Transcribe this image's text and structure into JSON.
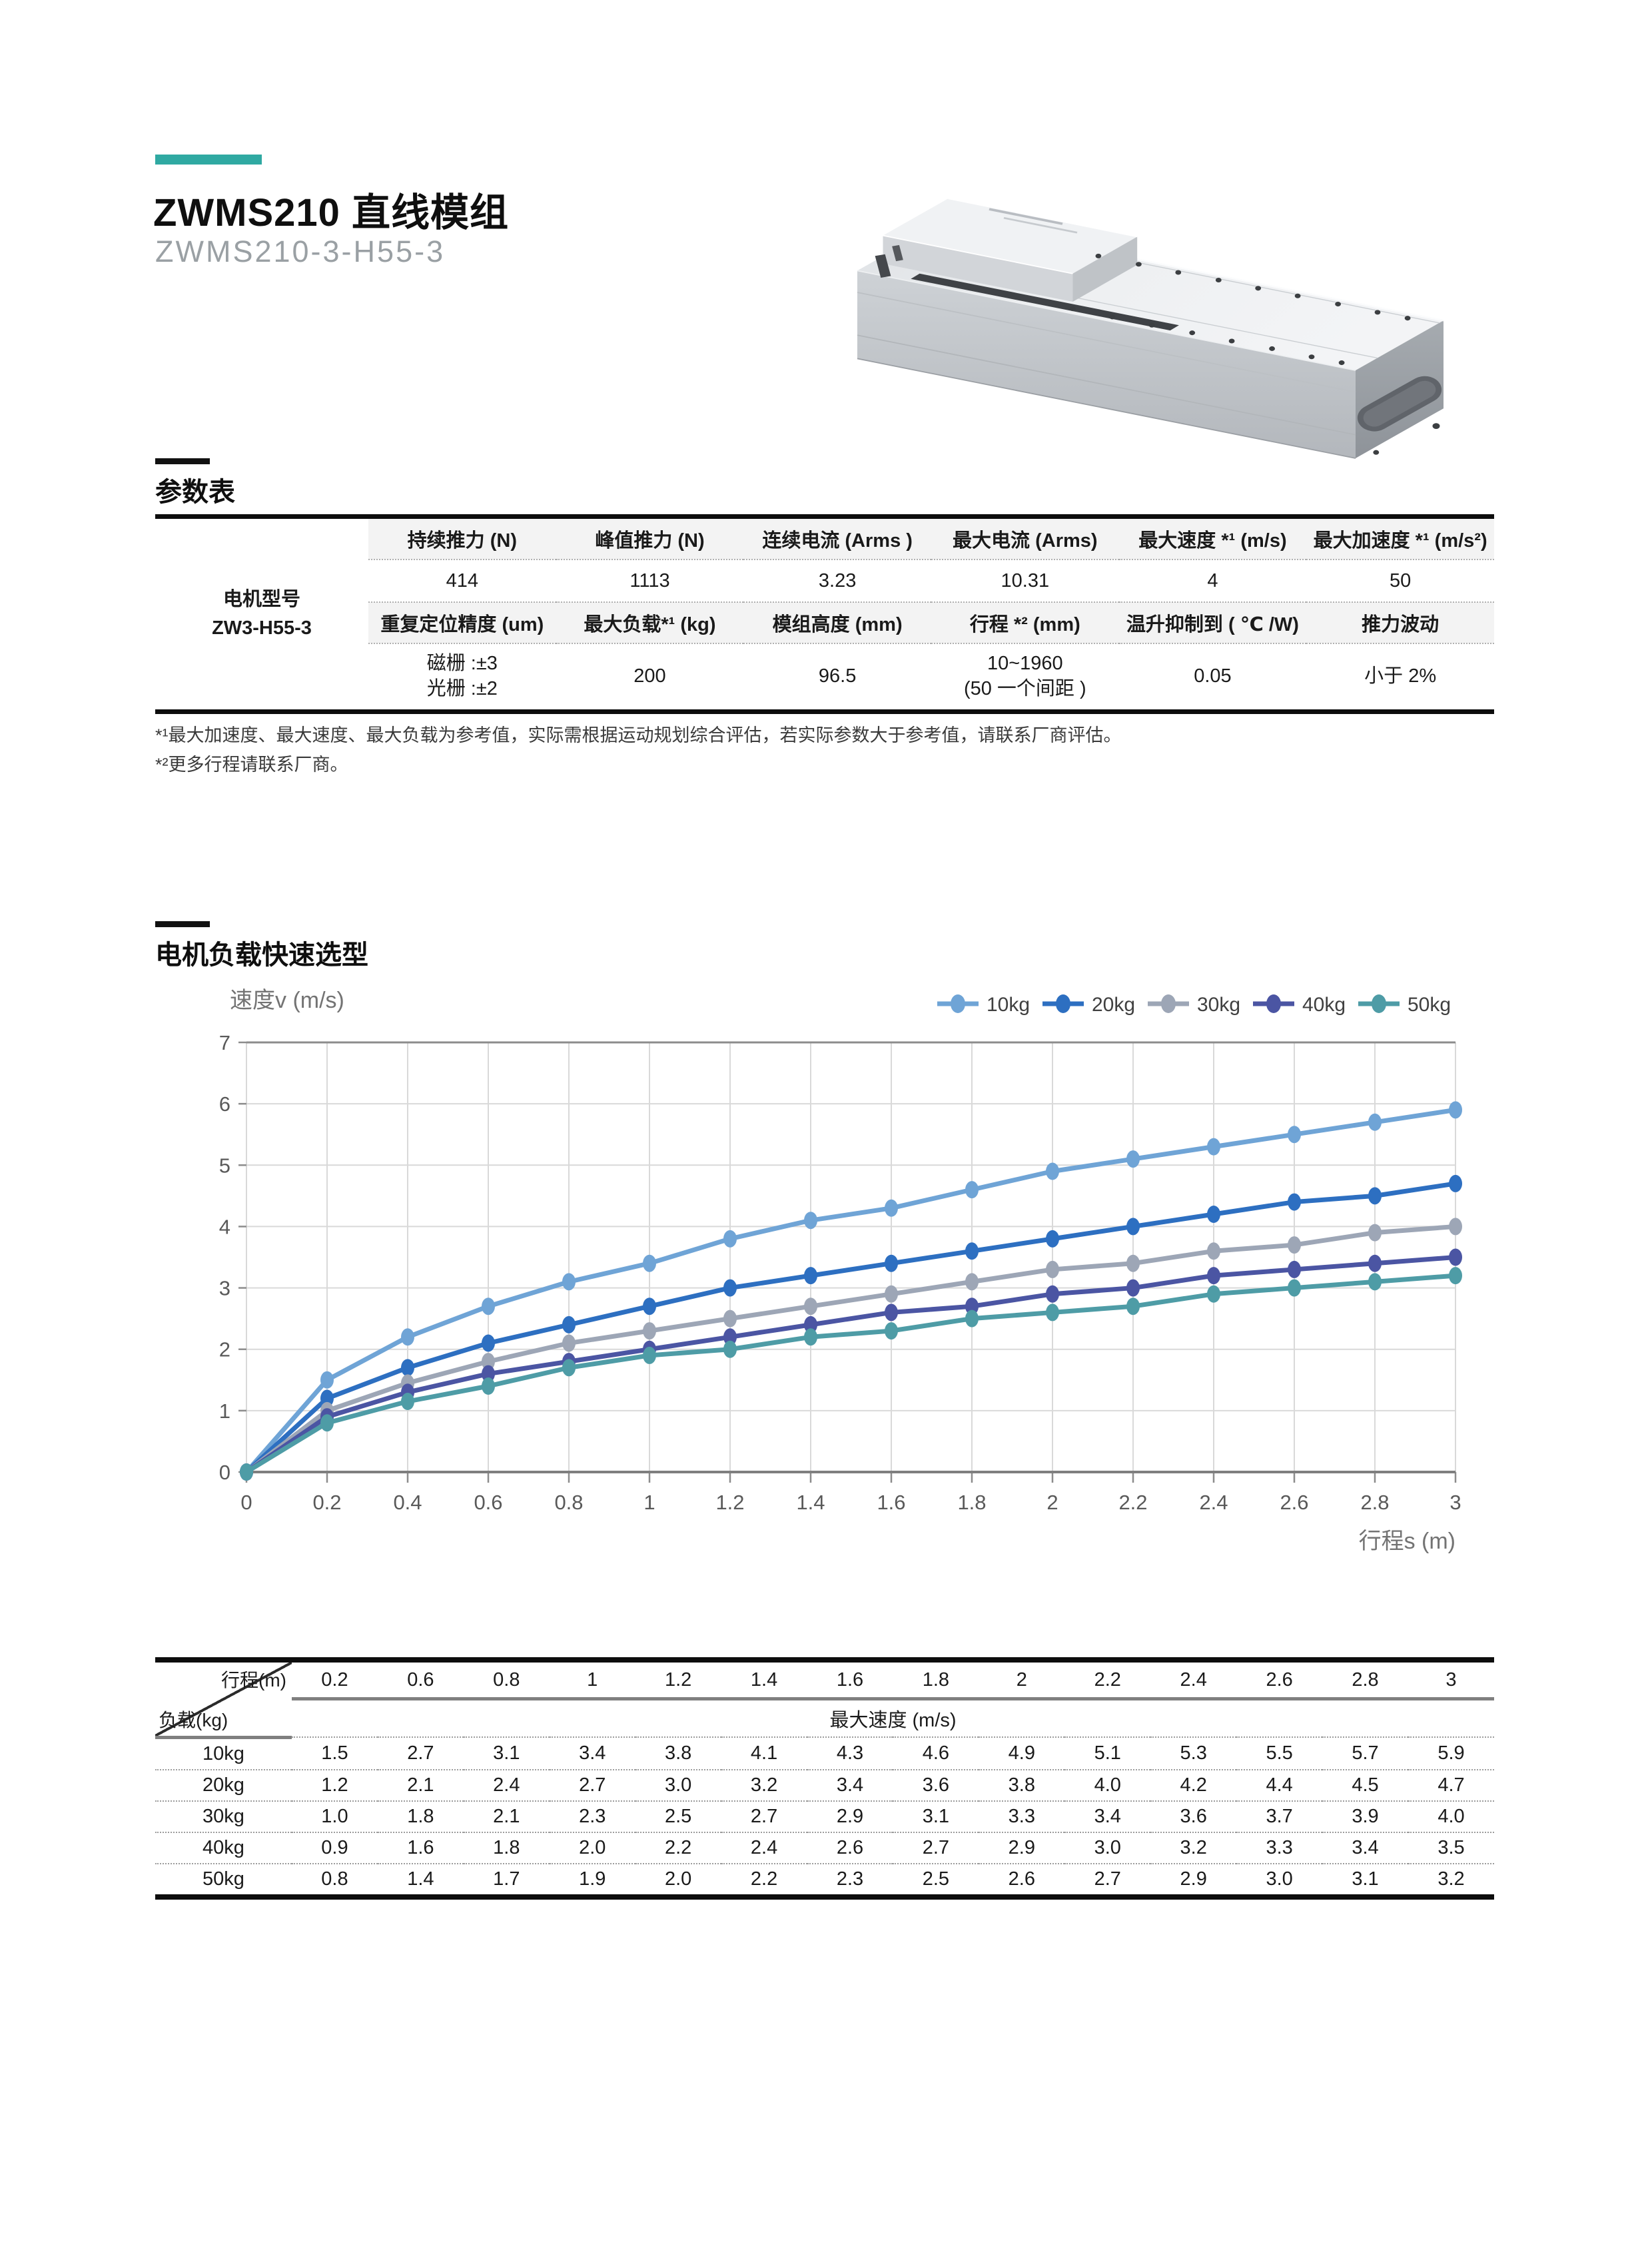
{
  "page": {
    "title": "ZWMS210 直线模组",
    "subtitle": "ZWMS210-3-H55-3",
    "accent_color": "#2fa9a2"
  },
  "spec_section": {
    "heading": "参数表",
    "table": {
      "label": {
        "line1": "电机型号",
        "line2": "ZW3-H55-3"
      },
      "header1": [
        "持续推力 (N)",
        "峰值推力 (N)",
        "连续电流 (Arms )",
        "最大电流 (Arms)",
        "最大速度 *¹ (m/s)",
        "最大加速度 *¹ (m/s²)"
      ],
      "values1": [
        "414",
        "1113",
        "3.23",
        "10.31",
        "4",
        "50"
      ],
      "header2": [
        "重复定位精度 (um)",
        "最大负载*¹ (kg)",
        "模组高度 (mm)",
        "行程 *² (mm)",
        "温升抑制到 ( ℃ /W)",
        "推力波动"
      ],
      "values2": [
        "磁栅 :±3\n光栅 :±2",
        "200",
        "96.5",
        "10~1960\n(50 一个间距 )",
        "0.05",
        "小于 2%"
      ]
    },
    "footnotes": [
      "*¹最大加速度、最大速度、最大负载为参考值，实际需根据运动规划综合评估，若实际参数大于参考值，请联系厂商评估。",
      "*²更多行程请联系厂商。"
    ]
  },
  "selection_section": {
    "heading": "电机负载快速选型"
  },
  "chart_data": {
    "type": "line",
    "title": "",
    "ylabel": "速度v (m/s)",
    "xlabel": "行程s (m)",
    "xlim": [
      0,
      3
    ],
    "ylim": [
      0,
      7
    ],
    "grid": true,
    "legend_position": "top-right",
    "x": [
      0,
      0.2,
      0.4,
      0.6,
      0.8,
      1,
      1.2,
      1.4,
      1.6,
      1.8,
      2,
      2.2,
      2.4,
      2.6,
      2.8,
      3
    ],
    "x_tick_labels": [
      "0",
      "0.2",
      "0.4",
      "0.6",
      "0.8",
      "1",
      "1.2",
      "1.4",
      "1.6",
      "1.8",
      "2",
      "2.2",
      "2.4",
      "2.6",
      "2.8",
      "3"
    ],
    "y_tick_labels": [
      "0",
      "1",
      "2",
      "3",
      "4",
      "5",
      "6",
      "7"
    ],
    "series": [
      {
        "name": "10kg",
        "color": "#6fa4d6",
        "values": [
          0,
          1.5,
          2.2,
          2.7,
          3.1,
          3.4,
          3.8,
          4.1,
          4.3,
          4.6,
          4.9,
          5.1,
          5.3,
          5.5,
          5.7,
          5.9
        ]
      },
      {
        "name": "20kg",
        "color": "#2d6fc1",
        "values": [
          0,
          1.2,
          1.7,
          2.1,
          2.4,
          2.7,
          3.0,
          3.2,
          3.4,
          3.6,
          3.8,
          4.0,
          4.2,
          4.4,
          4.5,
          4.7
        ]
      },
      {
        "name": "30kg",
        "color": "#9da6b6",
        "values": [
          0,
          1.0,
          1.45,
          1.8,
          2.1,
          2.3,
          2.5,
          2.7,
          2.9,
          3.1,
          3.3,
          3.4,
          3.6,
          3.7,
          3.9,
          4.0
        ]
      },
      {
        "name": "40kg",
        "color": "#4b55a3",
        "values": [
          0,
          0.9,
          1.3,
          1.6,
          1.8,
          2.0,
          2.2,
          2.4,
          2.6,
          2.7,
          2.9,
          3.0,
          3.2,
          3.3,
          3.4,
          3.5
        ]
      },
      {
        "name": "50kg",
        "color": "#4e9ca6",
        "values": [
          0,
          0.8,
          1.15,
          1.4,
          1.7,
          1.9,
          2.0,
          2.2,
          2.3,
          2.5,
          2.6,
          2.7,
          2.9,
          3.0,
          3.1,
          3.2
        ]
      }
    ]
  },
  "speed_table": {
    "corner_top": "行程(m)",
    "corner_bottom": "负载(kg)",
    "span_header": "最大速度 (m/s)",
    "columns": [
      "0.2",
      "0.6",
      "0.8",
      "1",
      "1.2",
      "1.4",
      "1.6",
      "1.8",
      "2",
      "2.2",
      "2.4",
      "2.6",
      "2.8",
      "3"
    ],
    "rows": [
      {
        "label": "10kg",
        "values": [
          "1.5",
          "2.7",
          "3.1",
          "3.4",
          "3.8",
          "4.1",
          "4.3",
          "4.6",
          "4.9",
          "5.1",
          "5.3",
          "5.5",
          "5.7",
          "5.9"
        ]
      },
      {
        "label": "20kg",
        "values": [
          "1.2",
          "2.1",
          "2.4",
          "2.7",
          "3.0",
          "3.2",
          "3.4",
          "3.6",
          "3.8",
          "4.0",
          "4.2",
          "4.4",
          "4.5",
          "4.7"
        ]
      },
      {
        "label": "30kg",
        "values": [
          "1.0",
          "1.8",
          "2.1",
          "2.3",
          "2.5",
          "2.7",
          "2.9",
          "3.1",
          "3.3",
          "3.4",
          "3.6",
          "3.7",
          "3.9",
          "4.0"
        ]
      },
      {
        "label": "40kg",
        "values": [
          "0.9",
          "1.6",
          "1.8",
          "2.0",
          "2.2",
          "2.4",
          "2.6",
          "2.7",
          "2.9",
          "3.0",
          "3.2",
          "3.3",
          "3.4",
          "3.5"
        ]
      },
      {
        "label": "50kg",
        "values": [
          "0.8",
          "1.4",
          "1.7",
          "1.9",
          "2.0",
          "2.2",
          "2.3",
          "2.5",
          "2.6",
          "2.7",
          "2.9",
          "3.0",
          "3.1",
          "3.2"
        ]
      }
    ]
  }
}
